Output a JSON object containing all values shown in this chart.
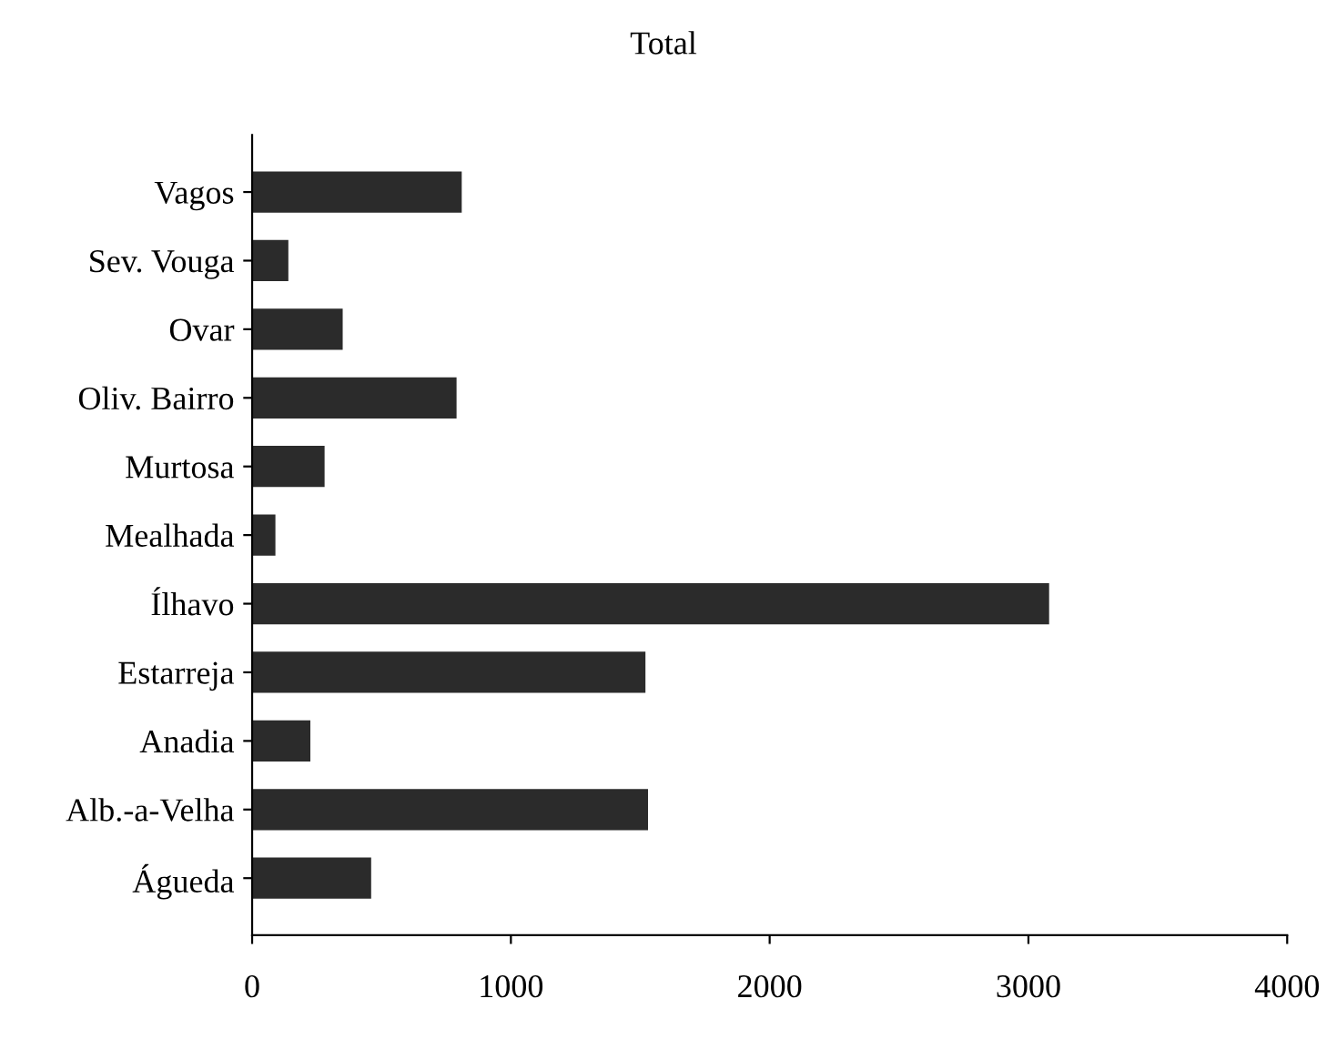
{
  "chart_data": {
    "type": "bar",
    "orientation": "horizontal",
    "title": "Total",
    "categories": [
      "Vagos",
      "Sev. Vouga",
      "Ovar",
      "Oliv. Bairro",
      "Murtosa",
      "Mealhada",
      "Ílhavo",
      "Estarreja",
      "Anadia",
      "Alb.-a-Velha",
      "Águeda"
    ],
    "values": [
      810,
      140,
      350,
      790,
      280,
      90,
      3080,
      1520,
      225,
      1530,
      460
    ],
    "color": "#2b2b2b",
    "xlim": [
      0,
      4000
    ],
    "xticks": [
      0,
      1000,
      2000,
      3000,
      4000
    ],
    "grid": false,
    "legend": false
  }
}
